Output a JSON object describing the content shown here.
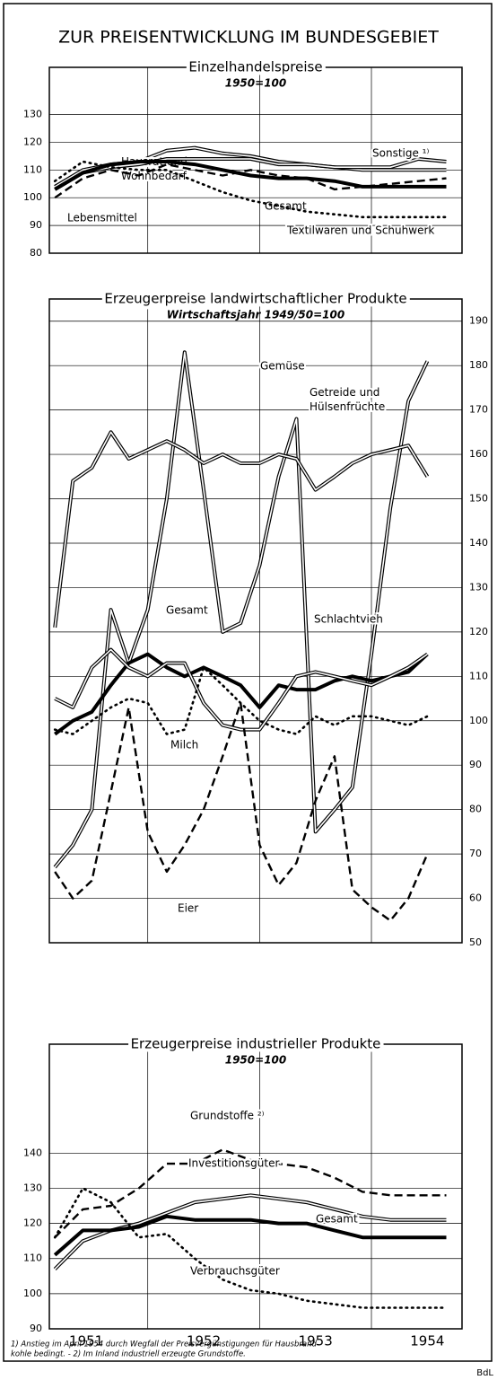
{
  "title": "ZUR PREISENTWICKLUNG IM BUNDESGEBIET",
  "footnotes": [
    "1) Anstieg im April 1954 durch Wegfall der Preisvergünstigungen für Hausbrand-",
    "kohle bedingt. - 2) Im Inland industriell erzeugte Grundstoffe."
  ],
  "source": "BdL",
  "chart_data": [
    {
      "type": "line",
      "title": "Einzelhandelspreise",
      "subtitle": "1950=100",
      "x": [
        1951.17,
        1951.42,
        1951.67,
        1951.92,
        1952.17,
        1952.42,
        1952.67,
        1952.92,
        1953.17,
        1953.42,
        1953.67,
        1953.92,
        1954.17,
        1954.42,
        1954.67
      ],
      "xlim": [
        1951.12,
        1954.81
      ],
      "xgrid": [
        1952,
        1953,
        1954
      ],
      "ylim": [
        80,
        147
      ],
      "yticks": [
        80,
        90,
        100,
        110,
        120,
        130
      ],
      "grid": true,
      "axis_side": "left",
      "series": [
        {
          "name": "Hausrat und Wohnbedarf",
          "style": "double",
          "color": "#000",
          "values": [
            104,
            110,
            112,
            113,
            117,
            118,
            116,
            115,
            113,
            112,
            111,
            110,
            110,
            110,
            110
          ]
        },
        {
          "name": "Sonstige ¹⁾",
          "style": "double",
          "color": "#000",
          "values": [
            103,
            109,
            111,
            112,
            114,
            114,
            114,
            114,
            112,
            112,
            111,
            111,
            111,
            114,
            113
          ]
        },
        {
          "name": "Lebensmittel",
          "style": "dashed",
          "color": "#000",
          "values": [
            100,
            107,
            110,
            108,
            112,
            110,
            108,
            110,
            108,
            107,
            103,
            104,
            105,
            106,
            107
          ]
        },
        {
          "name": "Gesamt",
          "style": "thick",
          "color": "#000",
          "values": [
            103,
            109,
            112,
            113,
            113,
            112,
            110,
            108,
            107,
            107,
            106,
            104,
            104,
            104,
            104
          ]
        },
        {
          "name": "Textilwaren und Schuhwerk",
          "style": "dotted",
          "color": "#000",
          "values": [
            106,
            113,
            111,
            110,
            110,
            106,
            102,
            99,
            97,
            95,
            94,
            93,
            93,
            93,
            93
          ]
        }
      ]
    },
    {
      "type": "line",
      "title": "Erzeugerpreise landwirtschaftlicher Produkte",
      "subtitle": "Wirtschaftsjahr 1949/50=100",
      "x": [
        1951.17,
        1951.33,
        1951.5,
        1951.67,
        1951.83,
        1952,
        1952.17,
        1952.33,
        1952.5,
        1952.67,
        1952.83,
        1953,
        1953.17,
        1953.33,
        1953.5,
        1953.67,
        1953.83,
        1954,
        1954.17,
        1954.33,
        1954.5
      ],
      "xlim": [
        1951.12,
        1954.81
      ],
      "xgrid": [
        1952,
        1953,
        1954
      ],
      "ylim": [
        50,
        195
      ],
      "yticks": [
        50,
        60,
        70,
        80,
        90,
        100,
        110,
        120,
        130,
        140,
        150,
        160,
        170,
        180,
        190
      ],
      "grid": true,
      "axis_side": "right",
      "series": [
        {
          "name": "Gemüse",
          "style": "double",
          "color": "#000",
          "values": [
            67,
            72,
            80,
            125,
            113,
            125,
            150,
            183,
            152,
            120,
            122,
            135,
            155,
            168,
            75,
            80,
            85,
            115,
            148,
            172,
            181
          ]
        },
        {
          "name": "Getreide und Hülsenfrüchte",
          "style": "double",
          "color": "#000",
          "values": [
            121,
            154,
            157,
            165,
            159,
            161,
            163,
            161,
            158,
            160,
            158,
            158,
            160,
            159,
            152,
            155,
            158,
            160,
            161,
            162,
            155
          ]
        },
        {
          "name": "Gesamt",
          "style": "thick",
          "color": "#000",
          "values": [
            97,
            100,
            102,
            108,
            113,
            115,
            112,
            110,
            112,
            110,
            108,
            103,
            108,
            107,
            107,
            109,
            110,
            109,
            110,
            111,
            115
          ]
        },
        {
          "name": "Schlachtvieh",
          "style": "double",
          "color": "#000",
          "values": [
            105,
            103,
            112,
            116,
            112,
            110,
            113,
            113,
            104,
            99,
            98,
            98,
            104,
            110,
            111,
            110,
            109,
            108,
            110,
            112,
            115
          ]
        },
        {
          "name": "Milch",
          "style": "dotted",
          "color": "#000",
          "values": [
            98,
            97,
            100,
            103,
            105,
            104,
            97,
            98,
            112,
            108,
            104,
            100,
            98,
            97,
            101,
            99,
            101,
            101,
            100,
            99,
            101
          ]
        },
        {
          "name": "Eier",
          "style": "dashed",
          "color": "#000",
          "values": [
            66,
            60,
            64,
            84,
            103,
            75,
            66,
            72,
            80,
            92,
            104,
            72,
            63,
            68,
            82,
            92,
            62,
            58,
            55,
            60,
            70
          ]
        }
      ]
    },
    {
      "type": "line",
      "title": "Erzeugerpreise industrieller Produkte",
      "subtitle": "1950=100",
      "x": [
        1951.17,
        1951.42,
        1951.67,
        1951.92,
        1952.17,
        1952.42,
        1952.67,
        1952.92,
        1953.17,
        1953.42,
        1953.67,
        1953.92,
        1954.17,
        1954.42,
        1954.67
      ],
      "xlim": [
        1951.12,
        1954.81
      ],
      "xgrid": [
        1952,
        1953,
        1954
      ],
      "xticks": [
        {
          "value": 1951.45,
          "label": "1951"
        },
        {
          "value": 1952.5,
          "label": "1952"
        },
        {
          "value": 1953.5,
          "label": "1953"
        },
        {
          "value": 1954.5,
          "label": "1954"
        }
      ],
      "ylim": [
        90,
        171
      ],
      "yticks": [
        90,
        100,
        110,
        120,
        130,
        140
      ],
      "grid": true,
      "axis_side": "left",
      "series": [
        {
          "name": "Grundstoffe ²⁾",
          "style": "dashed",
          "color": "#000",
          "values": [
            116,
            124,
            125,
            130,
            137,
            137,
            141,
            138,
            137,
            136,
            133,
            129,
            128,
            128,
            128
          ]
        },
        {
          "name": "Investitionsgüter",
          "style": "double",
          "color": "#000",
          "values": [
            107,
            115,
            118,
            120,
            123,
            126,
            127,
            128,
            127,
            126,
            124,
            122,
            121,
            121,
            121
          ]
        },
        {
          "name": "Gesamt",
          "style": "thick",
          "color": "#000",
          "values": [
            111,
            118,
            118,
            119,
            122,
            121,
            121,
            121,
            120,
            120,
            118,
            116,
            116,
            116,
            116
          ]
        },
        {
          "name": "Verbrauchsgüter",
          "style": "dotted",
          "color": "#000",
          "values": [
            116,
            130,
            126,
            116,
            117,
            110,
            104,
            101,
            100,
            98,
            97,
            96,
            96,
            96,
            96
          ]
        }
      ]
    }
  ]
}
